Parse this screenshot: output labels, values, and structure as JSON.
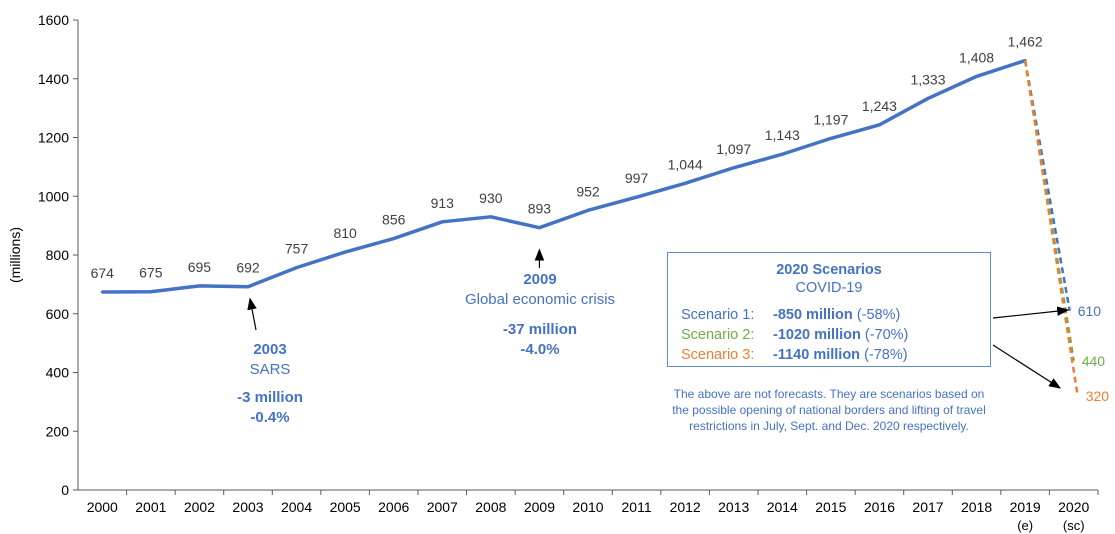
{
  "chart_data": {
    "type": "line",
    "title": "",
    "ylabel": "(millions)",
    "xlabel": "",
    "ylim": [
      0,
      1600
    ],
    "yticks": [
      0,
      200,
      400,
      600,
      800,
      1000,
      1200,
      1400,
      1600
    ],
    "categories": [
      "2000",
      "2001",
      "2002",
      "2003",
      "2004",
      "2005",
      "2006",
      "2007",
      "2008",
      "2009",
      "2010",
      "2011",
      "2012",
      "2013",
      "2014",
      "2015",
      "2016",
      "2017",
      "2018",
      "2019",
      "2020"
    ],
    "category_sublabels": {
      "2019": "(e)",
      "2020": "(sc)"
    },
    "series": [
      {
        "name": "",
        "color": "#4472C4",
        "values": [
          674,
          675,
          695,
          692,
          757,
          810,
          856,
          913,
          930,
          893,
          952,
          997,
          1044,
          1097,
          1143,
          1197,
          1243,
          1333,
          1408,
          1462,
          null
        ],
        "labels": [
          "674",
          "675",
          "695",
          "692",
          "757",
          "810",
          "856",
          "913",
          "930",
          "893",
          "952",
          "997",
          "1,044",
          "1,097",
          "1,143",
          "1,197",
          "1,243",
          "1,333",
          "1,408",
          "1,462",
          ""
        ]
      }
    ],
    "scenarios": [
      {
        "name": "Scenario 1",
        "color": "#4472C4",
        "from": [
          "2019",
          1462
        ],
        "to": [
          "2020",
          610
        ],
        "label": "610"
      },
      {
        "name": "Scenario 2",
        "color": "#70AD47",
        "from": [
          "2019",
          1462
        ],
        "to": [
          "2020",
          440
        ],
        "label": "440"
      },
      {
        "name": "Scenario 3",
        "color": "#ED7D31",
        "from": [
          "2019",
          1462
        ],
        "to": [
          "2020",
          320
        ],
        "label": "320"
      }
    ],
    "annotations": {
      "sars": {
        "year": "2003",
        "line1": "2003",
        "line2": "SARS",
        "line3": "-3 million",
        "line4": "-0.4%"
      },
      "crisis": {
        "year": "2009",
        "line1": "2009",
        "line2": "Global economic crisis",
        "line3": "-37 million",
        "line4": "-4.0%"
      }
    },
    "scenario_box": {
      "title": "2020 Scenarios",
      "subtitle": "COVID-19",
      "rows": [
        {
          "label": "Scenario 1:",
          "value": "-850 million",
          "pct": "(-58%)",
          "color": "#4472C4"
        },
        {
          "label": "Scenario 2:",
          "value": "-1020 million",
          "pct": "(-70%)",
          "color": "#70AD47"
        },
        {
          "label": "Scenario 3:",
          "value": "-1140 million",
          "pct": "(-78%)",
          "color": "#ED7D31"
        }
      ]
    },
    "note": "The above are not forecasts. They are scenarios based on the possible opening of national borders and lifting of travel restrictions in July, Sept. and Dec. 2020 respectively.",
    "grid": false,
    "legend": "none"
  }
}
